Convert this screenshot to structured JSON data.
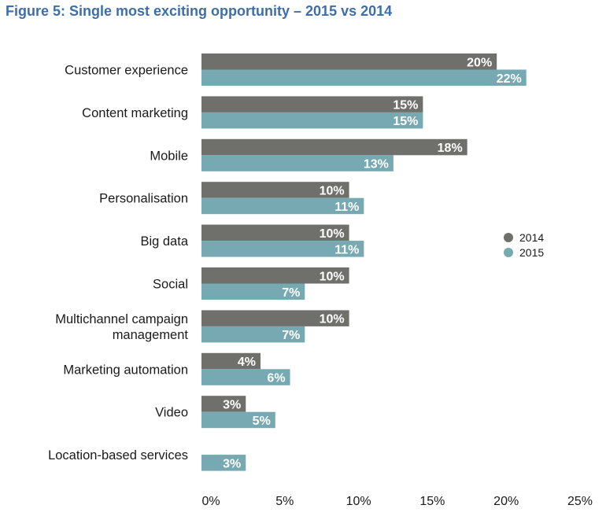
{
  "chart_data": {
    "type": "bar",
    "orientation": "horizontal",
    "title": "Figure 5: Single most exciting opportunity – 2015 vs 2014",
    "categories": [
      "Customer experience",
      "Content marketing",
      "Mobile",
      "Personalisation",
      "Big data",
      "Social",
      "Multichannel campaign management",
      "Marketing automation",
      "Video",
      "Location-based services"
    ],
    "category_lines": [
      [
        "Customer experience"
      ],
      [
        "Content marketing"
      ],
      [
        "Mobile"
      ],
      [
        "Personalisation"
      ],
      [
        "Big data"
      ],
      [
        "Social"
      ],
      [
        "Multichannel campaign",
        "management"
      ],
      [
        "Marketing automation"
      ],
      [
        "Video"
      ],
      [
        "Location-based services"
      ]
    ],
    "series": [
      {
        "name": "2014",
        "color": "#6f706b",
        "values": [
          20,
          15,
          18,
          10,
          10,
          10,
          10,
          4,
          3,
          null
        ]
      },
      {
        "name": "2015",
        "color": "#76a9b1",
        "values": [
          22,
          15,
          13,
          11,
          11,
          7,
          7,
          6,
          5,
          3
        ]
      }
    ],
    "xlim": [
      0,
      25
    ],
    "xticks": [
      0,
      5,
      10,
      15,
      20,
      25
    ],
    "xtick_labels": [
      "0%",
      "5%",
      "10%",
      "15%",
      "20%",
      "25%"
    ],
    "value_suffix": "%",
    "grid": false,
    "legend_position": "right"
  }
}
